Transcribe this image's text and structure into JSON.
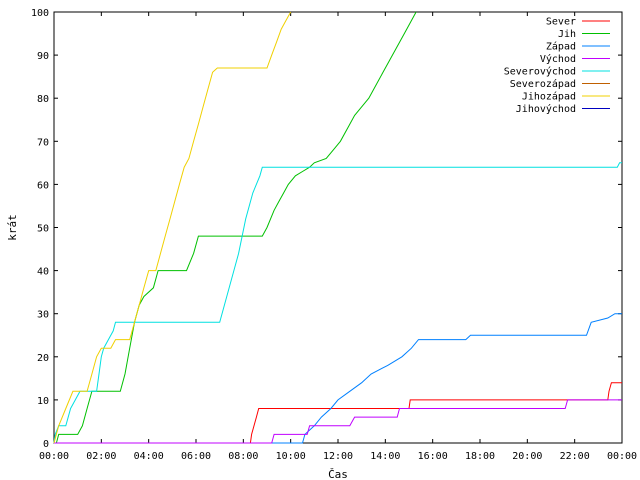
{
  "chart_data": {
    "type": "line",
    "xlabel": "Čas",
    "ylabel": "krát",
    "x_ticks": [
      "00:00",
      "02:00",
      "04:00",
      "06:00",
      "08:00",
      "10:00",
      "12:00",
      "14:00",
      "16:00",
      "18:00",
      "20:00",
      "22:00",
      "00:00"
    ],
    "x_range_hours": [
      0,
      24
    ],
    "ylim": [
      0,
      100
    ],
    "y_ticks": [
      0,
      10,
      20,
      30,
      40,
      50,
      60,
      70,
      80,
      90,
      100
    ],
    "grid": false,
    "legend_position": "top-right",
    "series": [
      {
        "name": "Sever",
        "color": "#ff0000",
        "points": [
          [
            0,
            0
          ],
          [
            8.3,
            0
          ],
          [
            8.35,
            2
          ],
          [
            8.45,
            4
          ],
          [
            8.55,
            6
          ],
          [
            8.65,
            8
          ],
          [
            15,
            8
          ],
          [
            15.05,
            10
          ],
          [
            23.4,
            10
          ],
          [
            23.45,
            12
          ],
          [
            23.55,
            14
          ],
          [
            24,
            14
          ]
        ]
      },
      {
        "name": "Jih",
        "color": "#00c000",
        "points": [
          [
            0,
            0
          ],
          [
            0.1,
            0
          ],
          [
            0.2,
            2
          ],
          [
            1.0,
            2
          ],
          [
            1.2,
            4
          ],
          [
            1.4,
            8
          ],
          [
            1.6,
            12
          ],
          [
            2.8,
            12
          ],
          [
            3.0,
            16
          ],
          [
            3.2,
            22
          ],
          [
            3.4,
            28
          ],
          [
            3.6,
            32
          ],
          [
            3.8,
            34
          ],
          [
            4.2,
            36
          ],
          [
            4.4,
            40
          ],
          [
            5.6,
            40
          ],
          [
            5.9,
            44
          ],
          [
            6.1,
            48
          ],
          [
            8.8,
            48
          ],
          [
            9.0,
            50
          ],
          [
            9.3,
            54
          ],
          [
            9.5,
            56
          ],
          [
            9.7,
            58
          ],
          [
            9.9,
            60
          ],
          [
            10.2,
            62
          ],
          [
            10.5,
            63
          ],
          [
            10.8,
            64
          ],
          [
            11.0,
            65
          ],
          [
            11.5,
            66
          ],
          [
            11.8,
            68
          ],
          [
            12.1,
            70
          ],
          [
            12.4,
            73
          ],
          [
            12.7,
            76
          ],
          [
            13.0,
            78
          ],
          [
            13.3,
            80
          ],
          [
            13.6,
            83
          ],
          [
            13.9,
            86
          ],
          [
            14.2,
            89
          ],
          [
            14.5,
            92
          ],
          [
            14.8,
            95
          ],
          [
            15.1,
            98
          ],
          [
            15.3,
            100
          ]
        ]
      },
      {
        "name": "Západ",
        "color": "#0080ff",
        "points": [
          [
            0,
            0
          ],
          [
            10.5,
            0
          ],
          [
            10.6,
            2
          ],
          [
            11.0,
            4
          ],
          [
            11.3,
            6
          ],
          [
            11.7,
            8
          ],
          [
            12.0,
            10
          ],
          [
            12.5,
            12
          ],
          [
            13.0,
            14
          ],
          [
            13.4,
            16
          ],
          [
            14.1,
            18
          ],
          [
            14.7,
            20
          ],
          [
            15.1,
            22
          ],
          [
            15.4,
            24
          ],
          [
            17.4,
            24
          ],
          [
            17.6,
            25
          ],
          [
            21.6,
            25
          ],
          [
            22.5,
            25
          ],
          [
            22.7,
            28
          ],
          [
            23.4,
            29
          ],
          [
            23.7,
            30
          ],
          [
            24,
            30
          ]
        ]
      },
      {
        "name": "Východ",
        "color": "#c000ff",
        "points": [
          [
            0,
            0
          ],
          [
            9.2,
            0
          ],
          [
            9.3,
            2
          ],
          [
            10.7,
            2
          ],
          [
            10.8,
            4
          ],
          [
            12.5,
            4
          ],
          [
            12.7,
            6
          ],
          [
            14.5,
            6
          ],
          [
            14.6,
            8
          ],
          [
            21.6,
            8
          ],
          [
            21.7,
            10
          ],
          [
            24,
            10
          ]
        ]
      },
      {
        "name": "Severovýchod",
        "color": "#00e0e0",
        "points": [
          [
            0,
            0
          ],
          [
            0.05,
            2
          ],
          [
            0.2,
            4
          ],
          [
            0.5,
            4
          ],
          [
            0.7,
            8
          ],
          [
            0.9,
            10
          ],
          [
            1.1,
            12
          ],
          [
            1.8,
            12
          ],
          [
            1.9,
            16
          ],
          [
            2.0,
            20
          ],
          [
            2.1,
            22
          ],
          [
            2.3,
            24
          ],
          [
            2.5,
            26
          ],
          [
            2.6,
            28
          ],
          [
            7.0,
            28
          ],
          [
            7.2,
            32
          ],
          [
            7.5,
            38
          ],
          [
            7.8,
            44
          ],
          [
            8.1,
            52
          ],
          [
            8.4,
            58
          ],
          [
            8.7,
            62
          ],
          [
            8.8,
            64
          ],
          [
            21.6,
            64
          ],
          [
            23.8,
            64
          ],
          [
            23.9,
            65
          ],
          [
            24,
            65
          ]
        ]
      },
      {
        "name": "Severozápad",
        "color": "#c06000",
        "points": []
      },
      {
        "name": "Jihozápad",
        "color": "#f0d000",
        "points": [
          [
            0,
            0
          ],
          [
            0.2,
            4
          ],
          [
            0.5,
            8
          ],
          [
            0.8,
            12
          ],
          [
            1.4,
            12
          ],
          [
            1.6,
            16
          ],
          [
            1.8,
            20
          ],
          [
            2.0,
            22
          ],
          [
            2.4,
            22
          ],
          [
            2.6,
            24
          ],
          [
            3.2,
            24
          ],
          [
            3.4,
            28
          ],
          [
            3.6,
            32
          ],
          [
            3.8,
            36
          ],
          [
            4.0,
            40
          ],
          [
            4.3,
            40
          ],
          [
            4.5,
            44
          ],
          [
            4.7,
            48
          ],
          [
            4.9,
            52
          ],
          [
            5.1,
            56
          ],
          [
            5.3,
            60
          ],
          [
            5.5,
            64
          ],
          [
            5.7,
            66
          ],
          [
            5.9,
            70
          ],
          [
            6.1,
            74
          ],
          [
            6.3,
            78
          ],
          [
            6.5,
            82
          ],
          [
            6.7,
            86
          ],
          [
            6.9,
            87
          ],
          [
            9.0,
            87
          ],
          [
            9.2,
            90
          ],
          [
            9.4,
            93
          ],
          [
            9.6,
            96
          ],
          [
            9.8,
            98
          ],
          [
            10.0,
            100
          ]
        ]
      },
      {
        "name": "Jihovýchod",
        "color": "#0000c0",
        "points": []
      }
    ]
  }
}
